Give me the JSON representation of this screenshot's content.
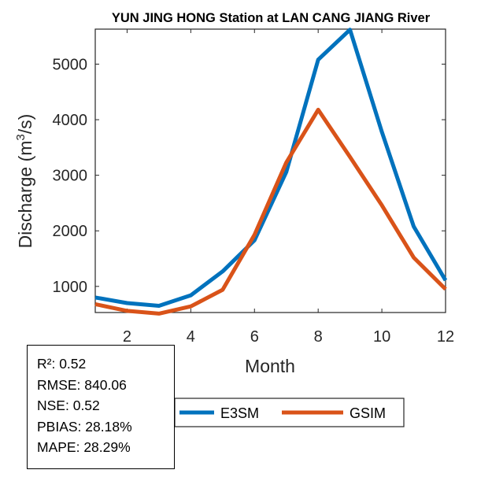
{
  "chart_data": {
    "type": "line",
    "title": "YUN JING HONG  Station at  LAN CANG JIANG  River",
    "xlabel": "Month",
    "ylabel_main": "Discharge (m",
    "ylabel_sup": "3",
    "ylabel_end": "/s)",
    "xlim": [
      1,
      12
    ],
    "ylim": [
      530,
      5630
    ],
    "xticks": [
      2,
      4,
      6,
      8,
      10,
      12
    ],
    "yticks": [
      1000,
      2000,
      3000,
      4000,
      5000
    ],
    "x": [
      1,
      2,
      3,
      4,
      5,
      6,
      7,
      8,
      9,
      10,
      11,
      12
    ],
    "series": [
      {
        "name": "E3SM",
        "color": "#0072BD",
        "values": [
          800,
          700,
          650,
          840,
          1270,
          1830,
          3060,
          5080,
          5620,
          3780,
          2080,
          1110
        ]
      },
      {
        "name": "GSIM",
        "color": "#D95319",
        "values": [
          680,
          560,
          510,
          640,
          940,
          1930,
          3230,
          4180,
          3330,
          2460,
          1520,
          950
        ]
      }
    ]
  },
  "stats": {
    "r2": "R²: 0.52",
    "rmse": "RMSE: 840.06",
    "nse": "NSE: 0.52",
    "pbias": "PBIAS: 28.18%",
    "mape": "MAPE: 28.29%"
  }
}
